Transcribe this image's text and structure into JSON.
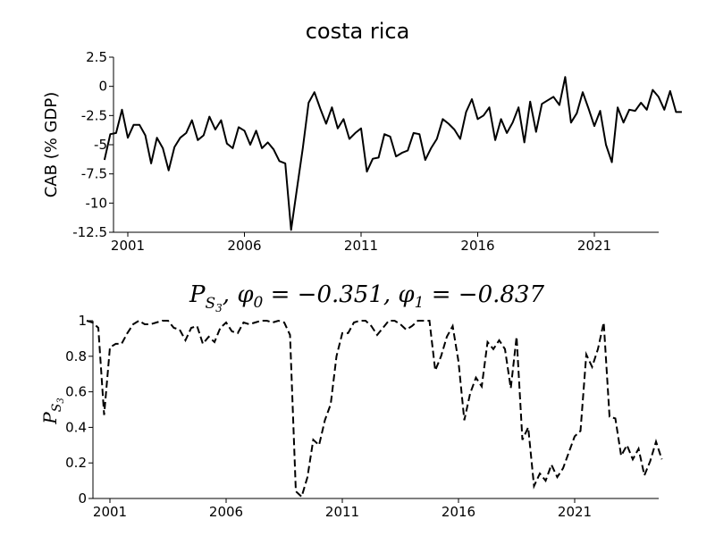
{
  "chart_data": [
    {
      "type": "line",
      "title": "costa rica",
      "ylabel": "CAB (% GDP)",
      "xlabel": "",
      "ylim": [
        -12.5,
        2.5
      ],
      "yticks": [
        "2.5",
        "0",
        "-2.5",
        "-5",
        "-7.5",
        "-10",
        "-12.5"
      ],
      "xticks": [
        "2001",
        "2006",
        "2011",
        "2016",
        "2021"
      ],
      "line_style": "solid",
      "color": "#000000",
      "series": [
        {
          "x": [
            2000.0,
            2000.25,
            2000.5,
            2000.75,
            2001.0,
            2001.25,
            2001.5,
            2001.75,
            2002.0,
            2002.25,
            2002.5,
            2002.75,
            2003.0,
            2003.25,
            2003.5,
            2003.75,
            2004.0,
            2004.25,
            2004.5,
            2004.75,
            2005.0,
            2005.25,
            2005.5,
            2005.75,
            2006.0,
            2006.25,
            2006.5,
            2006.75,
            2007.0,
            2007.25,
            2007.5,
            2007.75,
            2008.0,
            2008.25,
            2008.5,
            2008.75,
            2009.0,
            2009.25,
            2009.5,
            2009.75,
            2010.0,
            2010.25,
            2010.5,
            2010.75,
            2011.0,
            2011.25,
            2011.5,
            2011.75,
            2012.0,
            2012.25,
            2012.5,
            2012.75,
            2013.0,
            2013.25,
            2013.5,
            2013.75,
            2014.0,
            2014.25,
            2014.5,
            2014.75,
            2015.0,
            2015.25,
            2015.5,
            2015.75,
            2016.0,
            2016.25,
            2016.5,
            2016.75,
            2017.0,
            2017.25,
            2017.5,
            2017.75,
            2018.0,
            2018.25,
            2018.5,
            2018.75,
            2019.0,
            2019.25,
            2019.5,
            2019.75,
            2020.0,
            2020.25,
            2020.5,
            2020.75,
            2021.0,
            2021.25,
            2021.5,
            2021.75,
            2022.0,
            2022.25,
            2022.5,
            2022.75,
            2023.0,
            2023.25,
            2023.5,
            2023.75,
            2024.0,
            2024.25,
            2024.5,
            2024.75
          ],
          "values": [
            -6.3,
            -4.1,
            -4.0,
            -2.0,
            -4.4,
            -3.3,
            -3.3,
            -4.2,
            -6.6,
            -4.4,
            -5.3,
            -7.2,
            -5.2,
            -4.4,
            -4.0,
            -2.9,
            -4.6,
            -4.2,
            -2.6,
            -3.7,
            -2.9,
            -4.9,
            -5.3,
            -3.5,
            -3.8,
            -5.0,
            -3.8,
            -5.3,
            -4.8,
            -5.4,
            -6.4,
            -6.6,
            -12.3,
            -8.8,
            -5.3,
            -1.4,
            -0.5,
            -1.9,
            -3.2,
            -1.8,
            -3.6,
            -2.8,
            -4.5,
            -4.0,
            -3.6,
            -7.3,
            -6.2,
            -6.1,
            -4.1,
            -4.3,
            -6.0,
            -5.7,
            -5.5,
            -4.0,
            -4.1,
            -6.3,
            -5.3,
            -4.5,
            -2.8,
            -3.2,
            -3.7,
            -4.5,
            -2.2,
            -1.1,
            -2.8,
            -2.5,
            -1.8,
            -4.6,
            -2.8,
            -4.0,
            -3.1,
            -1.8,
            -4.8,
            -1.3,
            -3.9,
            -1.5,
            -1.2,
            -0.9,
            -1.6,
            0.8,
            -3.1,
            -2.3,
            -0.5,
            -1.9,
            -3.4,
            -2.1,
            -5.0,
            -6.5,
            -1.8,
            -3.1,
            -2.0,
            -2.1,
            -1.4,
            -2.0,
            -0.3,
            -0.9,
            -2.0,
            -0.4,
            -2.2,
            -2.2
          ]
        }
      ]
    },
    {
      "type": "line",
      "title": "P_{S_3}, φ_0 = −0.351, φ_1 = −0.837",
      "title_parts": {
        "p": "P",
        "s": "S",
        "three": "3",
        "rest": ", φ",
        "sub0": "0",
        "eq0": " = −0.351, φ",
        "sub1": "1",
        "eq1": " = −0.837"
      },
      "ylabel": "P_{S_3}",
      "ylabel_parts": {
        "p": "P",
        "s": "S",
        "three": "3"
      },
      "xlabel": "",
      "ylim": [
        0,
        1
      ],
      "yticks": [
        "0",
        "0.2",
        "0.4",
        "0.6",
        "0.8",
        "1"
      ],
      "xticks": [
        "2001",
        "2006",
        "2011",
        "2016",
        "2021"
      ],
      "line_style": "dashed",
      "color": "#000000",
      "series": [
        {
          "x": [
            2000.0,
            2000.25,
            2000.5,
            2000.75,
            2001.0,
            2001.25,
            2001.5,
            2001.75,
            2002.0,
            2002.25,
            2002.5,
            2002.75,
            2003.0,
            2003.25,
            2003.5,
            2003.75,
            2004.0,
            2004.25,
            2004.5,
            2004.75,
            2005.0,
            2005.25,
            2005.5,
            2005.75,
            2006.0,
            2006.25,
            2006.5,
            2006.75,
            2007.0,
            2007.25,
            2007.5,
            2007.75,
            2008.0,
            2008.25,
            2008.5,
            2008.75,
            2009.0,
            2009.25,
            2009.5,
            2009.75,
            2010.0,
            2010.25,
            2010.5,
            2010.75,
            2011.0,
            2011.25,
            2011.5,
            2011.75,
            2012.0,
            2012.25,
            2012.5,
            2012.75,
            2013.0,
            2013.25,
            2013.5,
            2013.75,
            2014.0,
            2014.25,
            2014.5,
            2014.75,
            2015.0,
            2015.25,
            2015.5,
            2015.75,
            2016.0,
            2016.25,
            2016.5,
            2016.75,
            2017.0,
            2017.25,
            2017.5,
            2017.75,
            2018.0,
            2018.25,
            2018.5,
            2018.75,
            2019.0,
            2019.25,
            2019.5,
            2019.75,
            2020.0,
            2020.25,
            2020.5,
            2020.75,
            2021.0,
            2021.25,
            2021.5,
            2021.75,
            2022.0,
            2022.25,
            2022.5,
            2022.75,
            2023.0,
            2023.25,
            2023.5,
            2023.75,
            2024.0,
            2024.25,
            2024.5,
            2024.75
          ],
          "values": [
            1.0,
            0.99,
            0.96,
            0.47,
            0.85,
            0.87,
            0.87,
            0.93,
            0.98,
            1.0,
            0.98,
            0.98,
            0.99,
            1.0,
            1.0,
            0.96,
            0.95,
            0.89,
            0.96,
            0.97,
            0.87,
            0.91,
            0.88,
            0.96,
            0.99,
            0.94,
            0.93,
            0.99,
            0.98,
            0.99,
            1.0,
            1.0,
            0.99,
            1.0,
            0.99,
            0.92,
            0.04,
            0.01,
            0.12,
            0.33,
            0.3,
            0.44,
            0.53,
            0.8,
            0.93,
            0.93,
            0.99,
            1.0,
            1.0,
            0.97,
            0.92,
            0.96,
            1.0,
            1.0,
            0.98,
            0.95,
            0.97,
            1.0,
            1.0,
            1.0,
            0.72,
            0.8,
            0.91,
            0.97,
            0.77,
            0.44,
            0.59,
            0.68,
            0.63,
            0.88,
            0.84,
            0.89,
            0.84,
            0.62,
            0.91,
            0.33,
            0.4,
            0.07,
            0.14,
            0.1,
            0.19,
            0.12,
            0.17,
            0.26,
            0.35,
            0.38,
            0.81,
            0.74,
            0.84,
            0.99,
            0.46,
            0.45,
            0.24,
            0.3,
            0.22,
            0.28,
            0.13,
            0.21,
            0.32,
            0.22
          ]
        }
      ]
    }
  ]
}
